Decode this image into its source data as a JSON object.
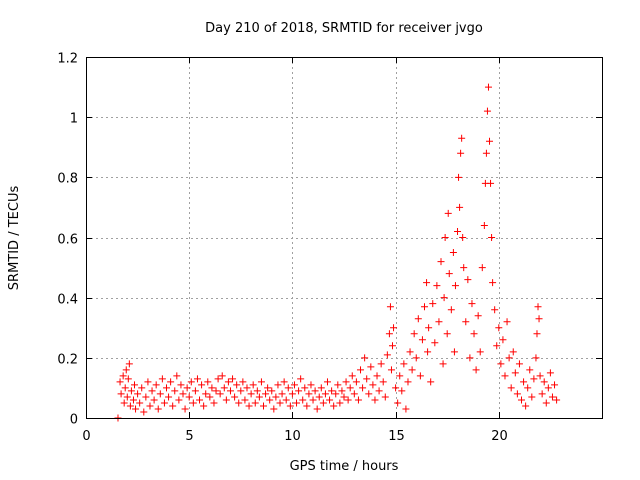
{
  "chart_data": {
    "type": "scatter",
    "title": "Day 210 of 2018, SRMTID for receiver jvgo",
    "xlabel": "GPS time / hours",
    "ylabel": "SRMTID / TECUs",
    "xlim": [
      0,
      25
    ],
    "ylim": [
      0,
      1.2
    ],
    "xticks": [
      0,
      5,
      10,
      15,
      20
    ],
    "xtick_labels": [
      "0",
      "5",
      "10",
      "15",
      "20"
    ],
    "yticks": [
      0,
      0.2,
      0.4,
      0.6,
      0.8,
      1,
      1.2
    ],
    "ytick_labels": [
      "0",
      "0.2",
      "0.4",
      "0.6",
      "0.8",
      "1",
      "1.2"
    ],
    "grid": true,
    "marker": "+",
    "color": "#ff0000",
    "series": [
      {
        "name": "SRMTID",
        "points": [
          [
            1.55,
            0.0
          ],
          [
            1.65,
            0.12
          ],
          [
            1.7,
            0.08
          ],
          [
            1.8,
            0.14
          ],
          [
            1.85,
            0.05
          ],
          [
            1.9,
            0.1
          ],
          [
            1.95,
            0.16
          ],
          [
            2.0,
            0.07
          ],
          [
            2.05,
            0.13
          ],
          [
            2.1,
            0.18
          ],
          [
            2.15,
            0.04
          ],
          [
            2.2,
            0.09
          ],
          [
            2.3,
            0.06
          ],
          [
            2.35,
            0.11
          ],
          [
            2.4,
            0.03
          ],
          [
            2.5,
            0.08
          ],
          [
            2.6,
            0.05
          ],
          [
            2.7,
            0.1
          ],
          [
            2.8,
            0.02
          ],
          [
            2.9,
            0.07
          ],
          [
            3.0,
            0.12
          ],
          [
            3.1,
            0.04
          ],
          [
            3.2,
            0.09
          ],
          [
            3.3,
            0.06
          ],
          [
            3.4,
            0.11
          ],
          [
            3.5,
            0.03
          ],
          [
            3.6,
            0.08
          ],
          [
            3.7,
            0.13
          ],
          [
            3.8,
            0.05
          ],
          [
            3.9,
            0.1
          ],
          [
            4.0,
            0.07
          ],
          [
            4.1,
            0.12
          ],
          [
            4.2,
            0.04
          ],
          [
            4.3,
            0.09
          ],
          [
            4.4,
            0.14
          ],
          [
            4.5,
            0.06
          ],
          [
            4.6,
            0.11
          ],
          [
            4.7,
            0.08
          ],
          [
            4.8,
            0.03
          ],
          [
            4.9,
            0.1
          ],
          [
            5.0,
            0.07
          ],
          [
            5.1,
            0.12
          ],
          [
            5.2,
            0.05
          ],
          [
            5.3,
            0.09
          ],
          [
            5.4,
            0.13
          ],
          [
            5.5,
            0.06
          ],
          [
            5.6,
            0.11
          ],
          [
            5.7,
            0.04
          ],
          [
            5.8,
            0.08
          ],
          [
            5.9,
            0.12
          ],
          [
            6.0,
            0.07
          ],
          [
            6.1,
            0.1
          ],
          [
            6.2,
            0.05
          ],
          [
            6.3,
            0.09
          ],
          [
            6.4,
            0.13
          ],
          [
            6.5,
            0.08
          ],
          [
            6.6,
            0.14
          ],
          [
            6.7,
            0.1
          ],
          [
            6.8,
            0.06
          ],
          [
            6.9,
            0.12
          ],
          [
            7.0,
            0.09
          ],
          [
            7.1,
            0.13
          ],
          [
            7.2,
            0.07
          ],
          [
            7.3,
            0.11
          ],
          [
            7.4,
            0.05
          ],
          [
            7.5,
            0.09
          ],
          [
            7.6,
            0.12
          ],
          [
            7.7,
            0.06
          ],
          [
            7.8,
            0.1
          ],
          [
            7.9,
            0.04
          ],
          [
            8.0,
            0.08
          ],
          [
            8.1,
            0.11
          ],
          [
            8.2,
            0.05
          ],
          [
            8.3,
            0.09
          ],
          [
            8.4,
            0.07
          ],
          [
            8.5,
            0.12
          ],
          [
            8.6,
            0.04
          ],
          [
            8.7,
            0.08
          ],
          [
            8.8,
            0.1
          ],
          [
            8.9,
            0.06
          ],
          [
            9.0,
            0.09
          ],
          [
            9.1,
            0.03
          ],
          [
            9.2,
            0.07
          ],
          [
            9.3,
            0.11
          ],
          [
            9.4,
            0.05
          ],
          [
            9.5,
            0.08
          ],
          [
            9.6,
            0.12
          ],
          [
            9.7,
            0.06
          ],
          [
            9.8,
            0.1
          ],
          [
            9.9,
            0.04
          ],
          [
            10.0,
            0.08
          ],
          [
            10.1,
            0.11
          ],
          [
            10.2,
            0.05
          ],
          [
            10.3,
            0.09
          ],
          [
            10.4,
            0.13
          ],
          [
            10.5,
            0.06
          ],
          [
            10.6,
            0.1
          ],
          [
            10.7,
            0.04
          ],
          [
            10.8,
            0.08
          ],
          [
            10.9,
            0.11
          ],
          [
            11.0,
            0.06
          ],
          [
            11.1,
            0.09
          ],
          [
            11.2,
            0.03
          ],
          [
            11.3,
            0.07
          ],
          [
            11.4,
            0.1
          ],
          [
            11.5,
            0.05
          ],
          [
            11.6,
            0.08
          ],
          [
            11.7,
            0.12
          ],
          [
            11.8,
            0.06
          ],
          [
            11.9,
            0.09
          ],
          [
            12.0,
            0.04
          ],
          [
            12.1,
            0.08
          ],
          [
            12.2,
            0.11
          ],
          [
            12.3,
            0.05
          ],
          [
            12.4,
            0.09
          ],
          [
            12.5,
            0.07
          ],
          [
            12.6,
            0.12
          ],
          [
            12.7,
            0.06
          ],
          [
            12.8,
            0.1
          ],
          [
            12.9,
            0.14
          ],
          [
            13.0,
            0.08
          ],
          [
            13.1,
            0.12
          ],
          [
            13.2,
            0.06
          ],
          [
            13.3,
            0.16
          ],
          [
            13.4,
            0.1
          ],
          [
            13.5,
            0.2
          ],
          [
            13.6,
            0.13
          ],
          [
            13.7,
            0.08
          ],
          [
            13.8,
            0.17
          ],
          [
            13.9,
            0.11
          ],
          [
            14.0,
            0.06
          ],
          [
            14.1,
            0.14
          ],
          [
            14.2,
            0.09
          ],
          [
            14.3,
            0.18
          ],
          [
            14.4,
            0.12
          ],
          [
            14.5,
            0.07
          ],
          [
            14.6,
            0.21
          ],
          [
            14.7,
            0.28
          ],
          [
            14.75,
            0.37
          ],
          [
            14.8,
            0.16
          ],
          [
            14.85,
            0.24
          ],
          [
            14.9,
            0.3
          ],
          [
            15.0,
            0.1
          ],
          [
            15.1,
            0.05
          ],
          [
            15.2,
            0.14
          ],
          [
            15.3,
            0.09
          ],
          [
            15.4,
            0.18
          ],
          [
            15.5,
            0.03
          ],
          [
            15.6,
            0.12
          ],
          [
            15.7,
            0.22
          ],
          [
            15.8,
            0.16
          ],
          [
            15.9,
            0.28
          ],
          [
            16.0,
            0.2
          ],
          [
            16.1,
            0.33
          ],
          [
            16.2,
            0.14
          ],
          [
            16.3,
            0.26
          ],
          [
            16.4,
            0.37
          ],
          [
            16.5,
            0.45
          ],
          [
            16.55,
            0.22
          ],
          [
            16.6,
            0.3
          ],
          [
            16.7,
            0.12
          ],
          [
            16.8,
            0.38
          ],
          [
            16.9,
            0.25
          ],
          [
            17.0,
            0.44
          ],
          [
            17.1,
            0.32
          ],
          [
            17.2,
            0.52
          ],
          [
            17.3,
            0.18
          ],
          [
            17.35,
            0.4
          ],
          [
            17.4,
            0.6
          ],
          [
            17.5,
            0.28
          ],
          [
            17.55,
            0.68
          ],
          [
            17.6,
            0.48
          ],
          [
            17.7,
            0.36
          ],
          [
            17.8,
            0.55
          ],
          [
            17.85,
            0.22
          ],
          [
            17.9,
            0.44
          ],
          [
            18.0,
            0.62
          ],
          [
            18.05,
            0.8
          ],
          [
            18.1,
            0.7
          ],
          [
            18.15,
            0.88
          ],
          [
            18.2,
            0.93
          ],
          [
            18.25,
            0.6
          ],
          [
            18.3,
            0.5
          ],
          [
            18.4,
            0.32
          ],
          [
            18.5,
            0.46
          ],
          [
            18.6,
            0.2
          ],
          [
            18.7,
            0.38
          ],
          [
            18.8,
            0.28
          ],
          [
            18.9,
            0.16
          ],
          [
            19.0,
            0.34
          ],
          [
            19.1,
            0.22
          ],
          [
            19.2,
            0.5
          ],
          [
            19.3,
            0.64
          ],
          [
            19.35,
            0.78
          ],
          [
            19.4,
            0.88
          ],
          [
            19.45,
            1.02
          ],
          [
            19.5,
            1.1
          ],
          [
            19.55,
            0.92
          ],
          [
            19.6,
            0.78
          ],
          [
            19.65,
            0.6
          ],
          [
            19.7,
            0.45
          ],
          [
            19.8,
            0.36
          ],
          [
            19.9,
            0.24
          ],
          [
            20.0,
            0.3
          ],
          [
            20.1,
            0.18
          ],
          [
            20.2,
            0.26
          ],
          [
            20.3,
            0.14
          ],
          [
            20.4,
            0.32
          ],
          [
            20.5,
            0.2
          ],
          [
            20.6,
            0.1
          ],
          [
            20.7,
            0.22
          ],
          [
            20.8,
            0.15
          ],
          [
            20.9,
            0.08
          ],
          [
            21.0,
            0.18
          ],
          [
            21.1,
            0.06
          ],
          [
            21.2,
            0.12
          ],
          [
            21.3,
            0.04
          ],
          [
            21.4,
            0.1
          ],
          [
            21.5,
            0.16
          ],
          [
            21.6,
            0.07
          ],
          [
            21.7,
            0.13
          ],
          [
            21.8,
            0.2
          ],
          [
            21.85,
            0.28
          ],
          [
            21.9,
            0.37
          ],
          [
            21.95,
            0.33
          ],
          [
            22.0,
            0.14
          ],
          [
            22.1,
            0.08
          ],
          [
            22.2,
            0.12
          ],
          [
            22.3,
            0.05
          ],
          [
            22.4,
            0.1
          ],
          [
            22.5,
            0.15
          ],
          [
            22.6,
            0.07
          ],
          [
            22.7,
            0.11
          ],
          [
            22.8,
            0.06
          ]
        ]
      }
    ]
  }
}
